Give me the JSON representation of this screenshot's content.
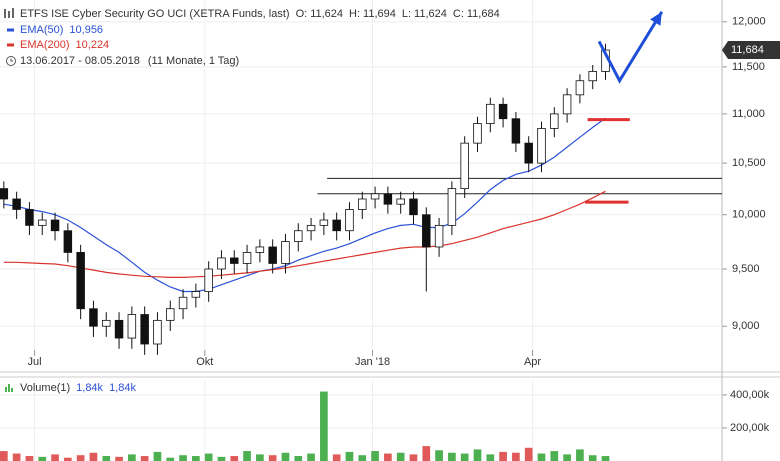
{
  "chart_data": {
    "type": "candlestick",
    "title": "ETFS ISE Cyber Security GO UCI (XETRA Funds, last)",
    "quote": [
      {
        "label": "O:",
        "value": "11,624"
      },
      {
        "label": "H:",
        "value": "11,694"
      },
      {
        "label": "L:",
        "value": "11,624"
      },
      {
        "label": "C:",
        "value": "11,684"
      }
    ],
    "range": "13.06.2017 - 08.05.2018",
    "range_note": "(11 Monate, 1 Tag)",
    "log": true,
    "grid": true,
    "xlim": [
      -0.3,
      56.1
    ],
    "xticks": [
      {
        "value": 2.4,
        "label": "Jul"
      },
      {
        "value": 15.7,
        "label": "Okt"
      },
      {
        "value": 28.8,
        "label": "Jan '18"
      },
      {
        "value": 41.3,
        "label": "Apr"
      }
    ],
    "ylim": [
      8800,
      12250
    ],
    "yticks": [
      {
        "value": 9000,
        "label": "9,000"
      },
      {
        "value": 9500,
        "label": "9,500"
      },
      {
        "value": 10000,
        "label": "10,000"
      },
      {
        "value": 10500,
        "label": "10,500"
      },
      {
        "value": 11000,
        "label": "11,000"
      },
      {
        "value": 11500,
        "label": "11,500"
      },
      {
        "value": 12000,
        "label": "12,000"
      }
    ],
    "last": {
      "value": 11684,
      "label": "11,684"
    },
    "ohlc": {
      "open": [
        10250,
        10150,
        10050,
        9900,
        9950,
        9850,
        9650,
        9150,
        9000,
        9050,
        8900,
        9100,
        8850,
        9050,
        9150,
        9250,
        9300,
        9500,
        9600,
        9550,
        9650,
        9700,
        9550,
        9750,
        9850,
        9900,
        9950,
        9850,
        10050,
        10150,
        10200,
        10100,
        10150,
        10000,
        9700,
        9900,
        10250,
        10700,
        10900,
        11100,
        10950,
        10700,
        10500,
        10850,
        11000,
        11200,
        11350,
        11450
      ],
      "high": [
        10320,
        10220,
        10120,
        10020,
        10020,
        9920,
        9720,
        9220,
        9120,
        9120,
        9170,
        9170,
        9120,
        9220,
        9320,
        9370,
        9570,
        9670,
        9670,
        9720,
        9770,
        9770,
        9820,
        9920,
        9970,
        10020,
        10020,
        10120,
        10220,
        10270,
        10270,
        10220,
        10220,
        10070,
        9970,
        10320,
        10770,
        10970,
        11170,
        11170,
        11020,
        10770,
        10920,
        11070,
        11270,
        11420,
        11520,
        11754
      ],
      "low": [
        10060,
        9960,
        9810,
        9810,
        9760,
        9560,
        9060,
        8910,
        8910,
        8810,
        8810,
        8760,
        8760,
        8960,
        9060,
        9160,
        9210,
        9410,
        9460,
        9460,
        9560,
        9460,
        9460,
        9660,
        9760,
        9810,
        9760,
        9760,
        9960,
        10060,
        10010,
        10010,
        9910,
        9300,
        9610,
        9810,
        10160,
        10610,
        10810,
        10860,
        10610,
        10410,
        10410,
        10760,
        10910,
        11110,
        11260,
        11360
      ],
      "close": [
        10150,
        10050,
        9900,
        9950,
        9850,
        9650,
        9150,
        9000,
        9050,
        8900,
        9100,
        8850,
        9050,
        9150,
        9250,
        9300,
        9500,
        9600,
        9550,
        9650,
        9700,
        9550,
        9750,
        9850,
        9900,
        9950,
        9850,
        10050,
        10150,
        10200,
        10100,
        10150,
        10000,
        9700,
        9900,
        10250,
        10700,
        10900,
        11100,
        10950,
        10700,
        10500,
        10850,
        11000,
        11200,
        11350,
        11450,
        11684
      ]
    },
    "series": [
      {
        "name": "EMA(50)",
        "color": "#2a52d6",
        "value_label": "10,956",
        "values": [
          10100,
          10080,
          10050,
          10030,
          10000,
          9950,
          9880,
          9800,
          9720,
          9650,
          9560,
          9470,
          9400,
          9340,
          9300,
          9300,
          9320,
          9360,
          9400,
          9440,
          9480,
          9500,
          9530,
          9580,
          9620,
          9660,
          9690,
          9730,
          9780,
          9830,
          9870,
          9900,
          9910,
          9880,
          9880,
          9920,
          10010,
          10120,
          10240,
          10330,
          10390,
          10420,
          10480,
          10560,
          10660,
          10760,
          10860,
          10956
        ]
      },
      {
        "name": "EMA(200)",
        "color": "#d9342b",
        "value_label": "10,224",
        "values": [
          9560,
          9560,
          9555,
          9550,
          9545,
          9530,
          9510,
          9490,
          9470,
          9455,
          9445,
          9435,
          9430,
          9425,
          9425,
          9430,
          9435,
          9445,
          9455,
          9465,
          9480,
          9495,
          9510,
          9530,
          9550,
          9570,
          9590,
          9610,
          9630,
          9650,
          9670,
          9690,
          9700,
          9700,
          9710,
          9730,
          9760,
          9790,
          9830,
          9870,
          9900,
          9930,
          9960,
          10000,
          10050,
          10100,
          10160,
          10224
        ]
      }
    ],
    "hlines": [
      {
        "value": 10350,
        "from": 25.25,
        "color": "#222222"
      },
      {
        "value": 10200,
        "from": 24.5,
        "color": "#222222"
      }
    ],
    "levels": [
      {
        "value": 10940,
        "from": 45.6,
        "to": 48.9,
        "color": "#e03030"
      },
      {
        "value": 10120,
        "from": 45.4,
        "to": 48.8,
        "color": "#e03030"
      }
    ],
    "arrow": {
      "color": "#1f4fd8",
      "x": [
        46.5,
        48.1,
        51.4
      ],
      "y": [
        11780,
        11350,
        12114
      ]
    },
    "volume": {
      "name": "Volume(1)",
      "labels": [
        "1,84k",
        "1,84k"
      ],
      "ylim": [
        0,
        490000
      ],
      "yticks": [
        {
          "value": 200000,
          "label": "200,00k"
        },
        {
          "value": 400000,
          "label": "400,00k"
        }
      ],
      "up_color": "#4caf50",
      "down_color": "#e05a5a",
      "values": [
        60000,
        45000,
        30000,
        25000,
        40000,
        20000,
        35000,
        50000,
        30000,
        25000,
        40000,
        30000,
        55000,
        20000,
        35000,
        30000,
        45000,
        25000,
        30000,
        60000,
        40000,
        35000,
        50000,
        30000,
        45000,
        420000,
        40000,
        55000,
        35000,
        60000,
        45000,
        50000,
        40000,
        90000,
        65000,
        50000,
        45000,
        70000,
        40000,
        55000,
        50000,
        80000,
        45000,
        60000,
        40000,
        70000,
        35000,
        30000
      ]
    }
  }
}
